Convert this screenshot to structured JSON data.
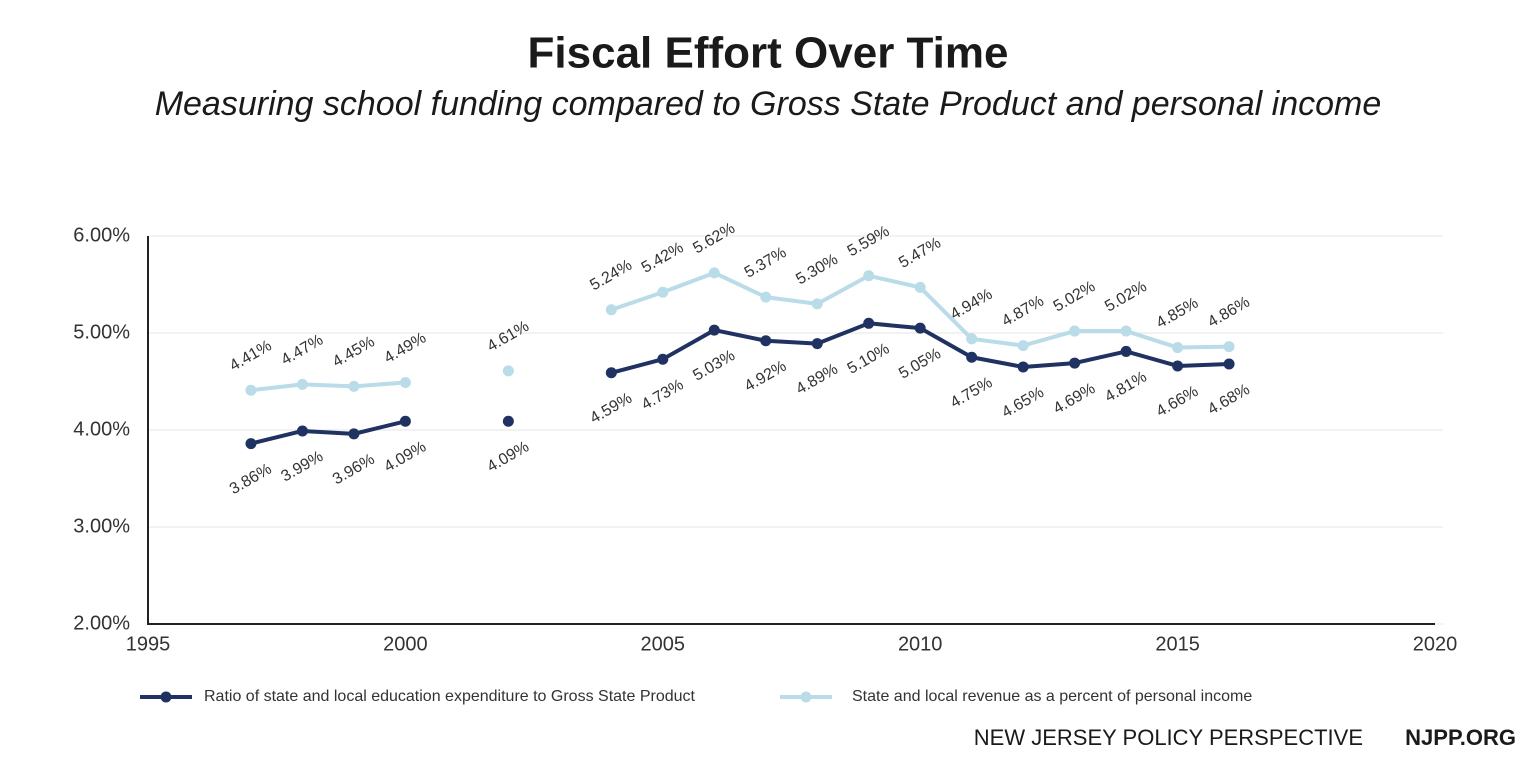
{
  "chart_data": {
    "type": "line",
    "title": "Fiscal Effort Over Time",
    "subtitle": "Measuring school funding compared to Gross State Product and personal income",
    "x": [
      1997,
      1998,
      1999,
      2000,
      2001,
      2002,
      2003,
      2004,
      2005,
      2006,
      2007,
      2008,
      2009,
      2010,
      2011,
      2012,
      2013,
      2014,
      2015,
      2016
    ],
    "series": [
      {
        "name": "Ratio of state and local education expenditure to Gross State Product",
        "color": "#1f3261",
        "values": [
          3.86,
          3.99,
          3.96,
          4.09,
          null,
          4.09,
          null,
          4.59,
          4.73,
          5.03,
          4.92,
          4.89,
          5.1,
          5.05,
          4.75,
          4.65,
          4.69,
          4.81,
          4.66,
          4.68
        ],
        "value_labels": [
          "3.86%",
          "3.99%",
          "3.96%",
          "4.09%",
          null,
          "4.09%",
          null,
          "4.59%",
          "4.73%",
          "5.03%",
          "4.92%",
          "4.89%",
          "5.10%",
          "5.05%",
          "4.75%",
          "4.65%",
          "4.69%",
          "4.81%",
          "4.66%",
          "4.68%"
        ]
      },
      {
        "name": "State and local revenue as a percent of personal income",
        "color": "#b9dce8",
        "values": [
          4.41,
          4.47,
          4.45,
          4.49,
          null,
          4.61,
          null,
          5.24,
          5.42,
          5.62,
          5.37,
          5.3,
          5.59,
          5.47,
          4.94,
          4.87,
          5.02,
          5.02,
          4.85,
          4.86
        ],
        "value_labels": [
          "4.41%",
          "4.47%",
          "4.45%",
          "4.49%",
          null,
          "4.61%",
          null,
          "5.24%",
          "5.42%",
          "5.62%",
          "5.37%",
          "5.30%",
          "5.59%",
          "5.47%",
          "4.94%",
          "4.87%",
          "5.02%",
          "5.02%",
          "4.85%",
          "4.86%"
        ]
      }
    ],
    "xlim": [
      1995,
      2020
    ],
    "xticks": [
      1995,
      2000,
      2005,
      2010,
      2015,
      2020
    ],
    "ylim": [
      2,
      6
    ],
    "yticks": [
      {
        "value": 2,
        "label": "2.00%"
      },
      {
        "value": 3,
        "label": "3.00%"
      },
      {
        "value": 4,
        "label": "4.00%"
      },
      {
        "value": 5,
        "label": "5.00%"
      },
      {
        "value": 6,
        "label": "6.00%"
      }
    ],
    "grid": true,
    "legend": "bottom",
    "credits": [
      "NEW JERSEY POLICY PERSPECTIVE",
      "NJPP.ORG"
    ]
  }
}
